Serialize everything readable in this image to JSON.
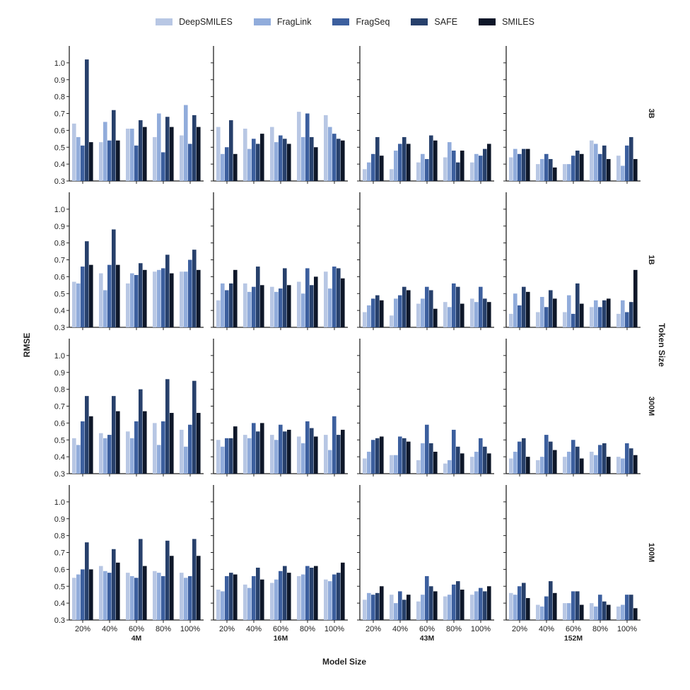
{
  "chart_data": {
    "type": "bar",
    "xlabel": "Model Size",
    "ylabel": "RMSE",
    "row_strip_title": "Token Size",
    "ylim": [
      0.3,
      1.1
    ],
    "yticks": [
      "0.3",
      "0.4",
      "0.5",
      "0.6",
      "0.7",
      "0.8",
      "0.9",
      "1.0"
    ],
    "categories": [
      "20%",
      "40%",
      "60%",
      "80%",
      "100%"
    ],
    "legend_position": "top",
    "series_names": [
      "DeepSMILES",
      "FragLink",
      "FragSeq",
      "SAFE",
      "SMILES"
    ],
    "colors": [
      "#b8c7e4",
      "#91acdb",
      "#3c5f9e",
      "#27406b",
      "#0e1729"
    ],
    "columns": [
      "4M",
      "16M",
      "43M",
      "152M"
    ],
    "rows": [
      "3B",
      "1B",
      "300M",
      "100M"
    ],
    "panels": [
      [
        [
          [
            0.64,
            0.56,
            0.51,
            1.02,
            0.53
          ],
          [
            0.53,
            0.65,
            0.54,
            0.72,
            0.54
          ],
          [
            0.61,
            0.61,
            0.51,
            0.66,
            0.62
          ],
          [
            0.56,
            0.7,
            0.47,
            0.68,
            0.62
          ],
          [
            0.57,
            0.75,
            0.52,
            0.69,
            0.62
          ]
        ],
        [
          [
            0.62,
            0.46,
            0.5,
            0.66,
            0.46
          ],
          [
            0.61,
            0.49,
            0.55,
            0.52,
            0.58
          ],
          [
            0.62,
            0.53,
            0.57,
            0.55,
            0.52
          ],
          [
            0.71,
            0.56,
            0.7,
            0.56,
            0.5
          ],
          [
            0.69,
            0.62,
            0.58,
            0.55,
            0.54
          ]
        ],
        [
          [
            0.37,
            0.41,
            0.46,
            0.56,
            0.45
          ],
          [
            0.37,
            0.48,
            0.52,
            0.56,
            0.52
          ],
          [
            0.41,
            0.46,
            0.43,
            0.57,
            0.54
          ],
          [
            0.44,
            0.53,
            0.48,
            0.41,
            0.48
          ],
          [
            0.41,
            0.46,
            0.45,
            0.49,
            0.52
          ]
        ],
        [
          [
            0.44,
            0.49,
            0.46,
            0.49,
            0.49
          ],
          [
            0.4,
            0.43,
            0.46,
            0.43,
            0.38
          ],
          [
            0.4,
            0.4,
            0.45,
            0.48,
            0.46
          ],
          [
            0.54,
            0.52,
            0.46,
            0.51,
            0.43
          ],
          [
            0.45,
            0.39,
            0.51,
            0.56,
            0.43
          ]
        ]
      ],
      [
        [
          [
            0.57,
            0.56,
            0.66,
            0.81,
            0.67
          ],
          [
            0.62,
            0.52,
            0.67,
            0.88,
            0.67
          ],
          [
            0.56,
            0.62,
            0.61,
            0.68,
            0.64
          ],
          [
            0.63,
            0.64,
            0.65,
            0.73,
            0.62
          ],
          [
            0.63,
            0.63,
            0.7,
            0.76,
            0.64
          ]
        ],
        [
          [
            0.46,
            0.56,
            0.52,
            0.56,
            0.64
          ],
          [
            0.56,
            0.51,
            0.54,
            0.66,
            0.55
          ],
          [
            0.54,
            0.51,
            0.53,
            0.65,
            0.55
          ],
          [
            0.57,
            0.5,
            0.65,
            0.55,
            0.6
          ],
          [
            0.63,
            0.53,
            0.66,
            0.65,
            0.59
          ]
        ],
        [
          [
            0.39,
            0.43,
            0.47,
            0.49,
            0.46
          ],
          [
            0.37,
            0.47,
            0.49,
            0.54,
            0.52
          ],
          [
            0.44,
            0.47,
            0.54,
            0.52,
            0.41
          ],
          [
            0.45,
            0.42,
            0.56,
            0.54,
            0.44
          ],
          [
            0.47,
            0.45,
            0.54,
            0.47,
            0.45
          ]
        ],
        [
          [
            0.38,
            0.5,
            0.43,
            0.54,
            0.51
          ],
          [
            0.39,
            0.48,
            0.42,
            0.52,
            0.47
          ],
          [
            0.39,
            0.49,
            0.38,
            0.56,
            0.44
          ],
          [
            0.42,
            0.46,
            0.42,
            0.46,
            0.47
          ],
          [
            0.38,
            0.46,
            0.39,
            0.45,
            0.64
          ]
        ]
      ],
      [
        [
          [
            0.51,
            0.47,
            0.61,
            0.76,
            0.64
          ],
          [
            0.54,
            0.51,
            0.53,
            0.76,
            0.67
          ],
          [
            0.55,
            0.51,
            0.61,
            0.8,
            0.67
          ],
          [
            0.6,
            0.47,
            0.61,
            0.86,
            0.66
          ],
          [
            0.56,
            0.46,
            0.59,
            0.85,
            0.66
          ]
        ],
        [
          [
            0.5,
            0.46,
            0.51,
            0.51,
            0.58
          ],
          [
            0.53,
            0.51,
            0.6,
            0.55,
            0.6
          ],
          [
            0.53,
            0.5,
            0.59,
            0.55,
            0.56
          ],
          [
            0.52,
            0.48,
            0.61,
            0.57,
            0.52
          ],
          [
            0.53,
            0.44,
            0.64,
            0.53,
            0.56
          ]
        ],
        [
          [
            0.39,
            0.43,
            0.5,
            0.51,
            0.52
          ],
          [
            0.41,
            0.41,
            0.52,
            0.51,
            0.49
          ],
          [
            0.38,
            0.48,
            0.59,
            0.48,
            0.43
          ],
          [
            0.36,
            0.38,
            0.56,
            0.46,
            0.42
          ],
          [
            0.4,
            0.43,
            0.51,
            0.46,
            0.42
          ]
        ],
        [
          [
            0.39,
            0.43,
            0.49,
            0.51,
            0.4
          ],
          [
            0.38,
            0.4,
            0.53,
            0.49,
            0.44
          ],
          [
            0.4,
            0.43,
            0.5,
            0.46,
            0.39
          ],
          [
            0.43,
            0.41,
            0.47,
            0.48,
            0.4
          ],
          [
            0.4,
            0.39,
            0.48,
            0.45,
            0.41
          ]
        ]
      ],
      [
        [
          [
            0.55,
            0.57,
            0.6,
            0.76,
            0.6
          ],
          [
            0.62,
            0.59,
            0.58,
            0.72,
            0.64
          ],
          [
            0.58,
            0.56,
            0.55,
            0.78,
            0.62
          ],
          [
            0.59,
            0.58,
            0.56,
            0.77,
            0.68
          ],
          [
            0.58,
            0.55,
            0.56,
            0.78,
            0.68
          ]
        ],
        [
          [
            0.48,
            0.47,
            0.56,
            0.58,
            0.57
          ],
          [
            0.51,
            0.49,
            0.56,
            0.61,
            0.54
          ],
          [
            0.52,
            0.54,
            0.59,
            0.62,
            0.58
          ],
          [
            0.56,
            0.57,
            0.62,
            0.61,
            0.62
          ],
          [
            0.54,
            0.53,
            0.57,
            0.58,
            0.64
          ]
        ],
        [
          [
            0.42,
            0.46,
            0.45,
            0.46,
            0.5
          ],
          [
            0.45,
            0.4,
            0.47,
            0.42,
            0.45
          ],
          [
            0.41,
            0.45,
            0.56,
            0.5,
            0.47
          ],
          [
            0.44,
            0.45,
            0.51,
            0.53,
            0.48
          ],
          [
            0.45,
            0.47,
            0.49,
            0.47,
            0.5
          ]
        ],
        [
          [
            0.46,
            0.45,
            0.5,
            0.52,
            0.43
          ],
          [
            0.39,
            0.38,
            0.44,
            0.53,
            0.46
          ],
          [
            0.4,
            0.4,
            0.47,
            0.47,
            0.39
          ],
          [
            0.4,
            0.38,
            0.45,
            0.41,
            0.39
          ],
          [
            0.38,
            0.39,
            0.45,
            0.45,
            0.37
          ]
        ]
      ]
    ]
  }
}
